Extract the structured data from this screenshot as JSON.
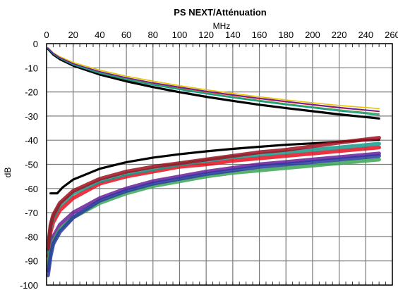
{
  "chart_data": {
    "type": "line",
    "title": "PS NEXT/Atténuation",
    "xlabel": "MHz",
    "ylabel": "dB",
    "xlim": [
      0,
      260
    ],
    "ylim": [
      -100,
      0
    ],
    "x_ticks": [
      0,
      20,
      40,
      60,
      80,
      100,
      120,
      140,
      160,
      180,
      200,
      220,
      240,
      260
    ],
    "y_ticks": [
      0,
      -10,
      -20,
      -30,
      -40,
      -50,
      -60,
      -70,
      -80,
      -90,
      -100
    ],
    "x_axis_position": "top",
    "grid": true,
    "colors": {
      "yellow": "#e8c400",
      "red": "#e81020",
      "green": "#3aa655",
      "teal": "#169a8c",
      "purple": "#6a1f9a",
      "darkred": "#a01020",
      "black": "#000000",
      "blue": "#2a3aa0"
    },
    "series": [
      {
        "color": "#000000",
        "kind": "attenuation-limit",
        "x": [
          1,
          5,
          10,
          20,
          40,
          60,
          80,
          100,
          120,
          140,
          160,
          180,
          200,
          220,
          250
        ],
        "y": [
          -2.1,
          -4.5,
          -6.4,
          -9.1,
          -12.8,
          -15.6,
          -18.0,
          -20.1,
          -22.0,
          -23.7,
          -25.3,
          -26.7,
          -28.0,
          -29.3,
          -31.0
        ]
      },
      {
        "color": "#e8c400",
        "kind": "attenuation",
        "x": [
          1,
          5,
          10,
          20,
          40,
          60,
          80,
          100,
          120,
          140,
          160,
          180,
          200,
          220,
          250
        ],
        "y": [
          -1.6,
          -3.8,
          -5.4,
          -7.8,
          -11.0,
          -13.5,
          -15.5,
          -17.4,
          -19.1,
          -20.6,
          -22.0,
          -23.3,
          -24.5,
          -25.6,
          -26.9
        ]
      },
      {
        "color": "#e81020",
        "kind": "attenuation",
        "x": [
          1,
          5,
          10,
          20,
          40,
          60,
          80,
          100,
          120,
          140,
          160,
          180,
          200,
          220,
          250
        ],
        "y": [
          -1.9,
          -4.1,
          -5.9,
          -8.5,
          -11.8,
          -14.3,
          -16.4,
          -18.2,
          -19.9,
          -21.4,
          -22.8,
          -24.1,
          -25.4,
          -26.6,
          -28.1
        ]
      },
      {
        "color": "#3aa655",
        "kind": "attenuation",
        "x": [
          1,
          5,
          10,
          20,
          40,
          60,
          80,
          100,
          120,
          140,
          160,
          180,
          200,
          220,
          250
        ],
        "y": [
          -1.9,
          -4.2,
          -6.0,
          -8.7,
          -12.1,
          -14.6,
          -16.8,
          -18.7,
          -20.4,
          -22.0,
          -23.5,
          -24.9,
          -26.2,
          -27.4,
          -29.1
        ]
      },
      {
        "color": "#169a8c",
        "kind": "attenuation",
        "x": [
          1,
          5,
          10,
          20,
          40,
          60,
          80,
          100,
          120,
          140,
          160,
          180,
          200,
          220,
          250
        ],
        "y": [
          -2.0,
          -4.3,
          -6.1,
          -8.8,
          -12.3,
          -14.9,
          -17.1,
          -19.0,
          -20.8,
          -22.4,
          -23.9,
          -25.3,
          -26.6,
          -27.9,
          -29.6
        ]
      },
      {
        "color": "#6a1f9a",
        "kind": "attenuation",
        "x": [
          1,
          5,
          10,
          20,
          40,
          60,
          80,
          100,
          120,
          140,
          160,
          180,
          200,
          220,
          250
        ],
        "y": [
          -1.8,
          -4.0,
          -5.8,
          -8.3,
          -11.6,
          -14.1,
          -16.2,
          -18.0,
          -19.7,
          -21.2,
          -22.6,
          -23.9,
          -25.2,
          -26.4,
          -28.0
        ]
      },
      {
        "color": "#000000",
        "kind": "psnext-limit",
        "x": [
          3,
          8,
          12,
          20,
          40,
          60,
          80,
          100,
          120,
          140,
          160,
          180,
          200,
          220,
          250
        ],
        "y": [
          -62,
          -62,
          -59.6,
          -56.3,
          -51.8,
          -49.1,
          -47.2,
          -45.8,
          -44.6,
          -43.6,
          -42.7,
          -41.9,
          -41.3,
          -40.6,
          -39.8
        ]
      },
      {
        "color": "#e81020",
        "kind": "psnext",
        "x": [
          1,
          3,
          5,
          10,
          20,
          40,
          60,
          80,
          100,
          120,
          140,
          160,
          180,
          200,
          220,
          250
        ],
        "y": [
          -88,
          -78,
          -74,
          -69,
          -64,
          -58,
          -55,
          -53,
          -51,
          -50,
          -48.5,
          -47.5,
          -46.5,
          -45.5,
          -44.5,
          -43
        ]
      },
      {
        "color": "#6a1f9a",
        "kind": "psnext",
        "x": [
          1,
          3,
          5,
          10,
          20,
          40,
          60,
          80,
          100,
          120,
          140,
          160,
          180,
          200,
          220,
          250
        ],
        "y": [
          -94,
          -84,
          -80,
          -75,
          -70,
          -64,
          -60,
          -57,
          -55,
          -53,
          -51.5,
          -50,
          -49,
          -48,
          -47,
          -45.5
        ]
      },
      {
        "color": "#3aa655",
        "kind": "psnext",
        "x": [
          1,
          3,
          5,
          10,
          20,
          40,
          60,
          80,
          100,
          120,
          140,
          160,
          180,
          200,
          220,
          250
        ],
        "y": [
          -92,
          -86,
          -82,
          -77,
          -72,
          -66,
          -62,
          -59,
          -57,
          -55,
          -53.5,
          -52.5,
          -51.5,
          -50.5,
          -49.5,
          -48
        ]
      },
      {
        "color": "#169a8c",
        "kind": "psnext",
        "x": [
          1,
          3,
          5,
          10,
          20,
          40,
          60,
          80,
          100,
          120,
          140,
          160,
          180,
          200,
          220,
          250
        ],
        "y": [
          -86,
          -76,
          -72,
          -67,
          -62,
          -57,
          -54,
          -52,
          -50,
          -48.5,
          -47,
          -46,
          -45,
          -44,
          -43,
          -41.5
        ]
      },
      {
        "color": "#a01020",
        "kind": "psnext",
        "x": [
          1,
          3,
          5,
          10,
          20,
          40,
          60,
          80,
          100,
          120,
          140,
          160,
          180,
          200,
          220,
          250
        ],
        "y": [
          -85,
          -75,
          -71,
          -66,
          -61,
          -56,
          -53,
          -51,
          -49.5,
          -48,
          -46.5,
          -45,
          -44,
          -42.5,
          -41,
          -39
        ]
      },
      {
        "color": "#2a3aa0",
        "kind": "psnext",
        "x": [
          1,
          3,
          5,
          10,
          20,
          40,
          60,
          80,
          100,
          120,
          140,
          160,
          180,
          200,
          220,
          250
        ],
        "y": [
          -96,
          -88,
          -83,
          -78,
          -72,
          -65,
          -61,
          -58,
          -56,
          -54,
          -52.5,
          -51,
          -50,
          -49,
          -48,
          -46.5
        ]
      }
    ]
  }
}
